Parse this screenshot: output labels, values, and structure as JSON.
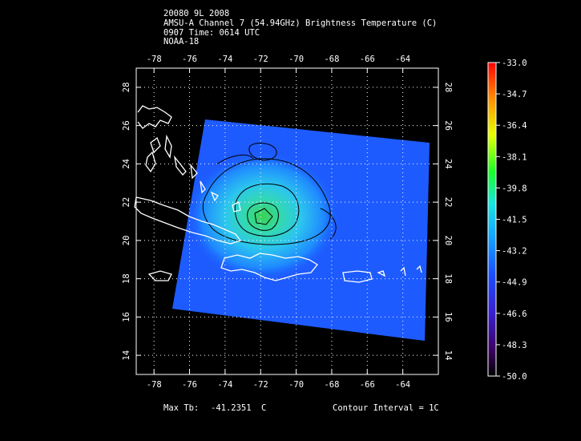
{
  "header": {
    "storm_id": "20080 9L 2008",
    "product": "AMSU-A Channel 7 (54.94GHz) Brightness Temperature (C)",
    "time": "0907 Time: 0614 UTC",
    "satellite": "NOAA-18"
  },
  "footer": {
    "max_tb_label": "Max Tb:",
    "max_tb_value": "-41.2351",
    "max_tb_unit": "C",
    "contour_interval": "Contour Interval = 1C"
  },
  "map": {
    "lon_ticks": [
      "-78",
      "-76",
      "-74",
      "-72",
      "-70",
      "-68",
      "-66",
      "-64"
    ],
    "lat_ticks": [
      "14",
      "16",
      "18",
      "20",
      "22",
      "24",
      "26",
      "28"
    ],
    "lon_range": [
      -79,
      -62
    ],
    "lat_range": [
      13,
      29
    ],
    "grid": true,
    "colors": {
      "background": "#000000",
      "field_min": "#1a3cff",
      "field_center": "#3cd65a",
      "coastline": "#ffffff",
      "contour": "#000000"
    }
  },
  "colorbar": {
    "labels": [
      "-33.0",
      "-34.7",
      "-36.4",
      "-38.1",
      "-39.8",
      "-41.5",
      "-43.2",
      "-44.9",
      "-46.6",
      "-48.3",
      "-50.0"
    ],
    "min": -50.0,
    "max": -33.0
  }
}
